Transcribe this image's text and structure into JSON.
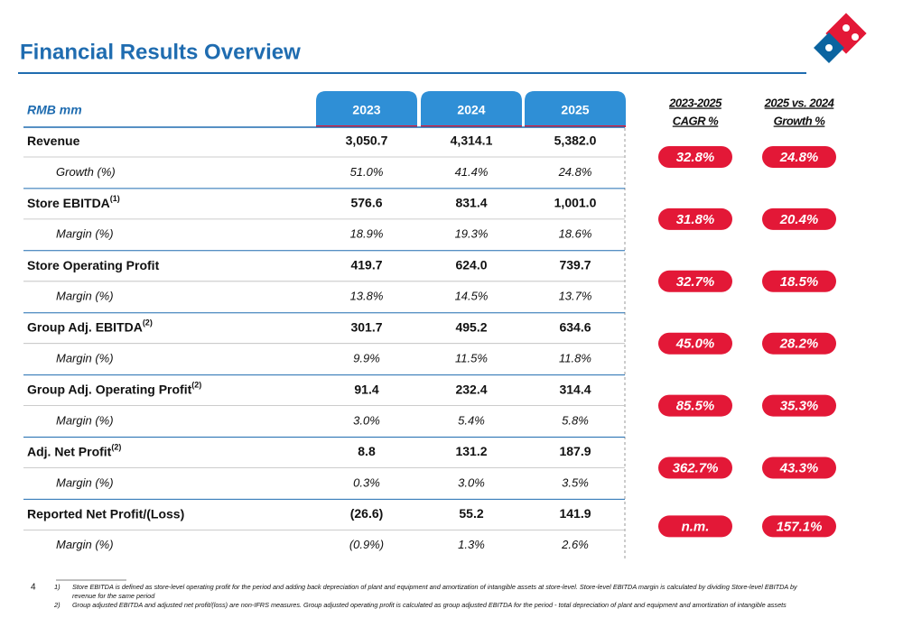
{
  "header": {
    "title": "Financial Results Overview"
  },
  "table": {
    "unit_label": "RMB mm",
    "columns": [
      "2023",
      "2024",
      "2025"
    ],
    "cagr_header": [
      "2023-2025",
      "CAGR %"
    ],
    "growth_header": [
      "2025 vs. 2024",
      "Growth %"
    ],
    "groups": [
      {
        "label": "Revenue",
        "values": [
          "3,050.7",
          "4,314.1",
          "5,382.0"
        ],
        "sub_label": "Growth (%)",
        "sub_values": [
          "51.0%",
          "41.4%",
          "24.8%"
        ],
        "cagr": "32.8%",
        "growth": "24.8%"
      },
      {
        "label": "Store EBITDA",
        "superscript": "(1)",
        "values": [
          "576.6",
          "831.4",
          "1,001.0"
        ],
        "sub_label": "Margin (%)",
        "sub_values": [
          "18.9%",
          "19.3%",
          "18.6%"
        ],
        "cagr": "31.8%",
        "growth": "20.4%"
      },
      {
        "label": "Store Operating Profit",
        "values": [
          "419.7",
          "624.0",
          "739.7"
        ],
        "sub_label": "Margin (%)",
        "sub_values": [
          "13.8%",
          "14.5%",
          "13.7%"
        ],
        "cagr": "32.7%",
        "growth": "18.5%"
      },
      {
        "label": "Group Adj. EBITDA",
        "superscript": "(2)",
        "values": [
          "301.7",
          "495.2",
          "634.6"
        ],
        "sub_label": "Margin (%)",
        "sub_values": [
          "9.9%",
          "11.5%",
          "11.8%"
        ],
        "cagr": "45.0%",
        "growth": "28.2%"
      },
      {
        "label": "Group Adj. Operating Profit",
        "superscript": "(2)",
        "values": [
          "91.4",
          "232.4",
          "314.4"
        ],
        "sub_label": "Margin (%)",
        "sub_values": [
          "3.0%",
          "5.4%",
          "5.8%"
        ],
        "cagr": "85.5%",
        "growth": "35.3%"
      },
      {
        "label": "Adj. Net Profit",
        "superscript": "(2)",
        "values": [
          "8.8",
          "131.2",
          "187.9"
        ],
        "sub_label": "Margin (%)",
        "sub_values": [
          "0.3%",
          "3.0%",
          "3.5%"
        ],
        "cagr": "362.7%",
        "growth": "43.3%"
      },
      {
        "label": "Reported Net Profit/(Loss)",
        "values": [
          "(26.6)",
          "55.2",
          "141.9"
        ],
        "sub_label": "Margin (%)",
        "sub_values": [
          "(0.9%)",
          "1.3%",
          "2.6%"
        ],
        "cagr": "n.m.",
        "growth": "157.1%"
      }
    ]
  },
  "footer": {
    "page_number": "4",
    "notes": [
      {
        "marker": "1)",
        "lines": [
          "Store EBITDA is defined as store-level operating profit for the period and adding back depreciation of plant and equipment and amortization of intangible assets at store-level. Store-level EBITDA margin is calculated by dividing Store-level EBITDA by",
          "revenue for the same period"
        ]
      },
      {
        "marker": "2)",
        "lines": [
          "Group adjusted EBITDA and adjusted net profit/(loss) are non-IFRS measures. Group adjusted operating profit is calculated as group adjusted EBITDA for the period - total depreciation of plant and equipment and amortization of intangible assets"
        ]
      }
    ]
  }
}
